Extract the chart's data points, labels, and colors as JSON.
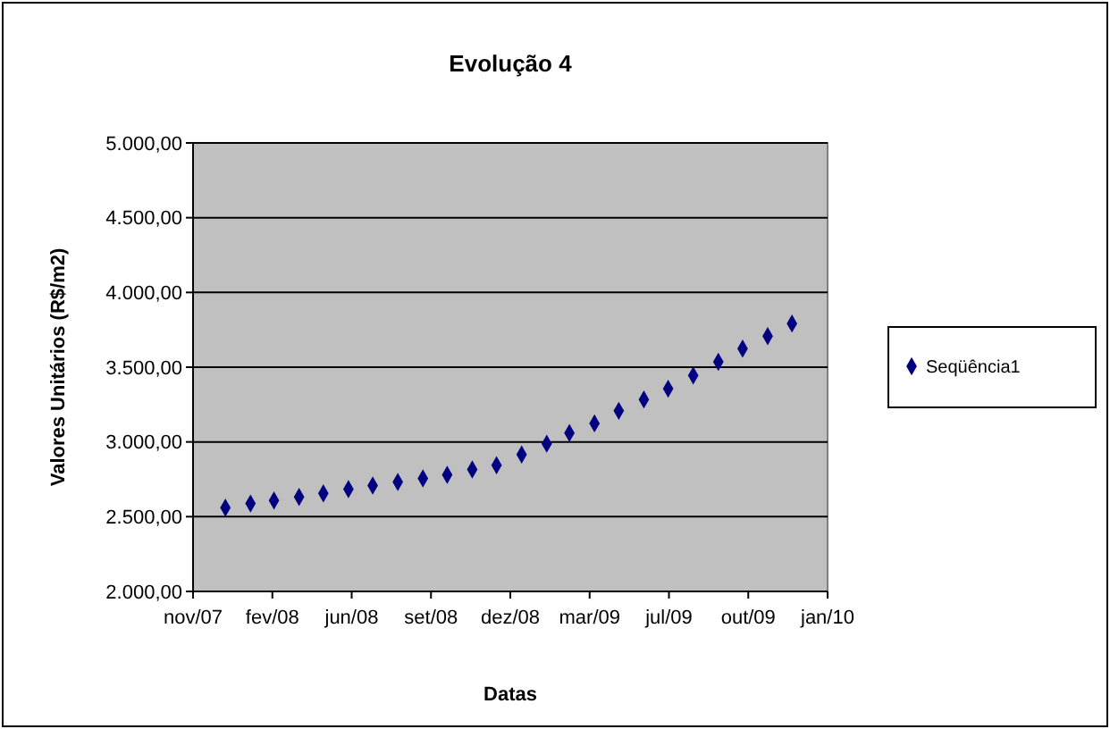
{
  "chart_data": {
    "type": "scatter",
    "title": "Evolução 4",
    "xlabel": "Datas",
    "ylabel": "Valores Unitários (R$/m2)",
    "x": [
      "2008-01",
      "2008-02",
      "2008-03",
      "2008-04",
      "2008-05",
      "2008-06",
      "2008-07",
      "2008-08",
      "2008-09",
      "2008-10",
      "2008-11",
      "2008-12",
      "2009-01",
      "2009-02",
      "2009-03",
      "2009-04",
      "2009-05",
      "2009-06",
      "2009-07",
      "2009-08",
      "2009-09",
      "2009-10",
      "2009-11",
      "2009-12"
    ],
    "series": [
      {
        "name": "Seqüência1",
        "color": "#000080",
        "values": [
          2560,
          2588,
          2608,
          2632,
          2656,
          2684,
          2708,
          2732,
          2756,
          2780,
          2816,
          2844,
          2916,
          2988,
          3060,
          3124,
          3208,
          3284,
          3356,
          3444,
          3536,
          3624,
          3708,
          3792
        ]
      }
    ],
    "xlim": [
      "2007-11-22",
      "2010-01-14"
    ],
    "xticks": [
      {
        "value": "2007-11-22",
        "label": "nov/07"
      },
      {
        "value": "2008-02-28",
        "label": "fev/08"
      },
      {
        "value": "2008-06-05",
        "label": "jun/08"
      },
      {
        "value": "2008-09-11",
        "label": "set/08"
      },
      {
        "value": "2008-12-18",
        "label": "dez/08"
      },
      {
        "value": "2009-03-26",
        "label": "mar/09"
      },
      {
        "value": "2009-07-02",
        "label": "jul/09"
      },
      {
        "value": "2009-10-08",
        "label": "out/09"
      },
      {
        "value": "2010-01-14",
        "label": "jan/10"
      }
    ],
    "ylim": [
      2000,
      5000
    ],
    "yticks": [
      {
        "value": 2000,
        "label": "2.000,00"
      },
      {
        "value": 2500,
        "label": "2.500,00"
      },
      {
        "value": 3000,
        "label": "3.000,00"
      },
      {
        "value": 3500,
        "label": "3.500,00"
      },
      {
        "value": 4000,
        "label": "4.000,00"
      },
      {
        "value": 4500,
        "label": "4.500,00"
      },
      {
        "value": 5000,
        "label": "5.000,00"
      }
    ],
    "grid": "y",
    "legend": "right",
    "marker": "diamond"
  }
}
